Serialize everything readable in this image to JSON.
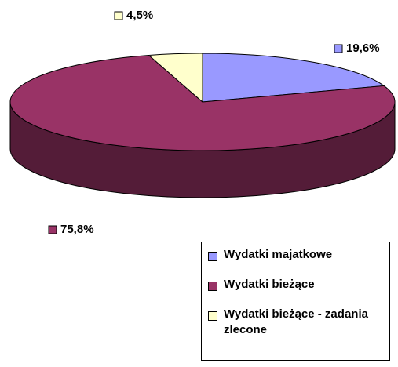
{
  "chart_data": {
    "type": "pie",
    "categories": [
      "Wydatki majatkowe",
      "Wydatki bieżące",
      "Wydatki bieżące - zadania zlecone"
    ],
    "values": [
      19.6,
      75.8,
      4.5
    ],
    "value_labels": [
      "19,6%",
      "75,8%",
      "4,5%"
    ],
    "colors": [
      "#9999ff",
      "#993366",
      "#ffffcc"
    ],
    "legend": "bottom-right"
  }
}
